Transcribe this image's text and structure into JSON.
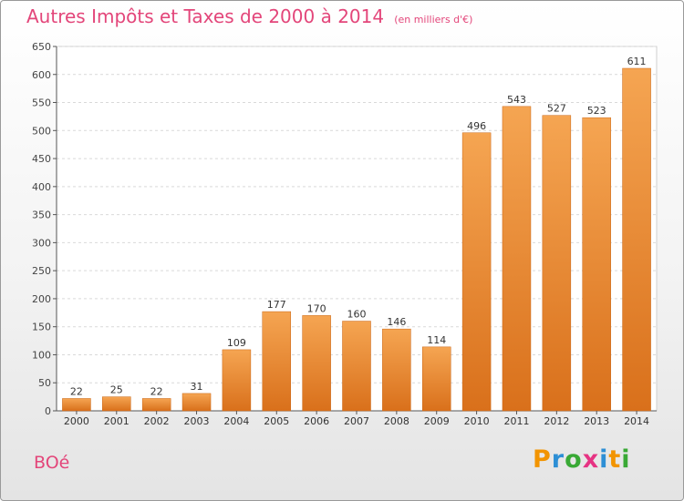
{
  "title": {
    "main": "Autres Impôts et Taxes de 2000 à 2014",
    "unit": "(en milliers d'€)"
  },
  "location_label": "BOé",
  "brand": {
    "name": "Proxiti",
    "letter_colors": [
      "#f29400",
      "#2d8fd5",
      "#39a935",
      "#e63383",
      "#2d8fd5",
      "#f29400",
      "#39a935"
    ]
  },
  "colors": {
    "bar": "#f0902f",
    "text_pink": "#e3467a",
    "grid": "#d9d9d9"
  },
  "chart_data": {
    "type": "bar",
    "categories": [
      "2000",
      "2001",
      "2002",
      "2003",
      "2004",
      "2005",
      "2006",
      "2007",
      "2008",
      "2009",
      "2010",
      "2011",
      "2012",
      "2013",
      "2014"
    ],
    "values": [
      22,
      25,
      22,
      31,
      109,
      177,
      170,
      160,
      146,
      114,
      496,
      543,
      527,
      523,
      611
    ],
    "ylim": [
      0,
      650
    ],
    "yticks": [
      0,
      50,
      100,
      150,
      200,
      250,
      300,
      350,
      400,
      450,
      500,
      550,
      600,
      650
    ],
    "grid": true,
    "data_labels": true
  }
}
